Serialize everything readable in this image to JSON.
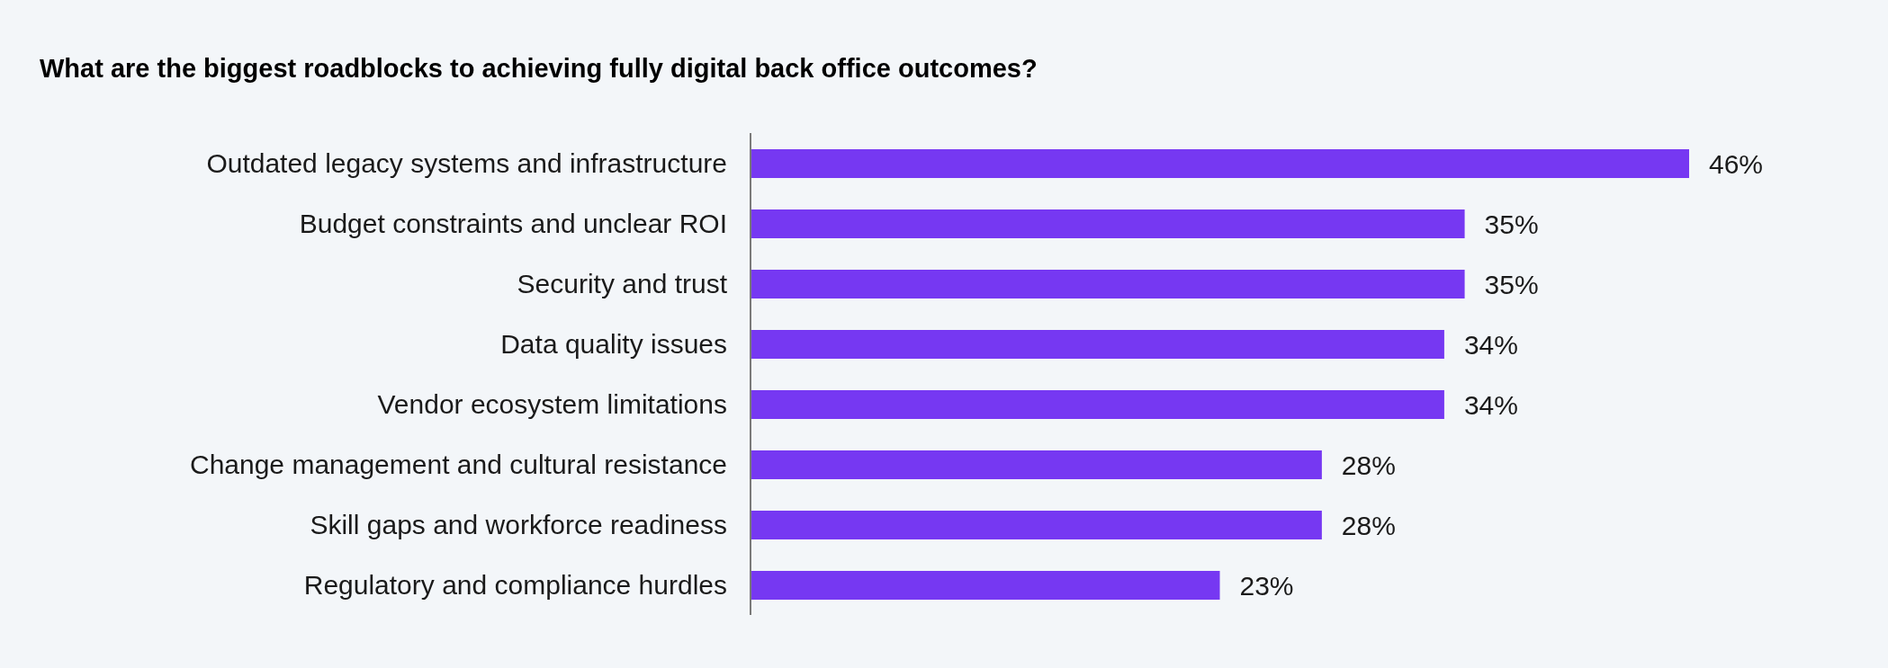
{
  "chart_data": {
    "type": "bar",
    "orientation": "horizontal",
    "title": "What are the biggest roadblocks to achieving fully digital back office outcomes?",
    "categories": [
      "Outdated legacy systems and infrastructure",
      "Budget constraints and unclear ROI",
      "Security and trust",
      "Data quality issues",
      "Vendor ecosystem limitations",
      "Change management and cultural resistance",
      "Skill gaps and workforce readiness",
      "Regulatory and compliance hurdles"
    ],
    "values": [
      46,
      35,
      35,
      34,
      34,
      28,
      28,
      23
    ],
    "value_labels": [
      "46%",
      "35%",
      "35%",
      "34%",
      "34%",
      "28%",
      "28%",
      "23%"
    ],
    "color": "#7638f2"
  }
}
